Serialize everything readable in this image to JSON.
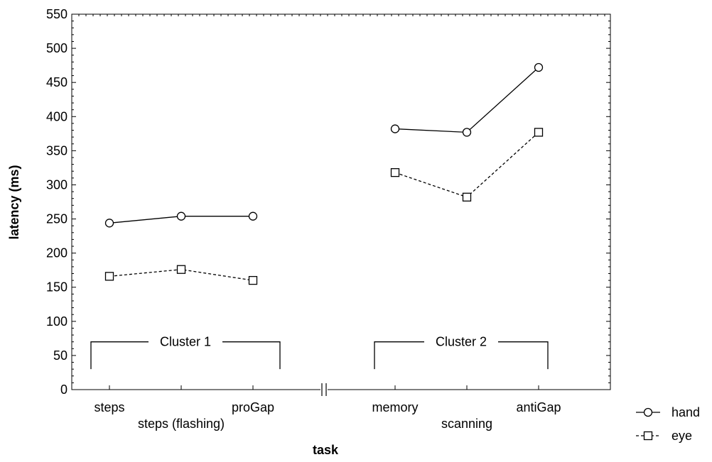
{
  "chart_data": {
    "type": "line",
    "xlabel": "task",
    "ylabel": "latency (ms)",
    "ylim": [
      0,
      550
    ],
    "yticks": [
      0,
      50,
      100,
      150,
      200,
      250,
      300,
      350,
      400,
      450,
      500,
      550
    ],
    "categories": [
      "steps",
      "steps (flashing)",
      "proGap",
      "memory",
      "scanning",
      "antiGap"
    ],
    "axis_break_between": [
      "proGap",
      "memory"
    ],
    "series": [
      {
        "name": "hand",
        "marker": "circle",
        "line_style": "solid",
        "values": [
          244,
          254,
          254,
          382,
          377,
          472
        ]
      },
      {
        "name": "eye",
        "marker": "square",
        "line_style": "dashed",
        "values": [
          166,
          176,
          160,
          318,
          282,
          377
        ]
      }
    ],
    "clusters": [
      {
        "label": "Cluster 1",
        "categories": [
          "steps",
          "steps (flashing)",
          "proGap"
        ]
      },
      {
        "label": "Cluster 2",
        "categories": [
          "memory",
          "scanning",
          "antiGap"
        ]
      }
    ],
    "legend_position": "bottom-right, outside plot",
    "grid": false
  }
}
